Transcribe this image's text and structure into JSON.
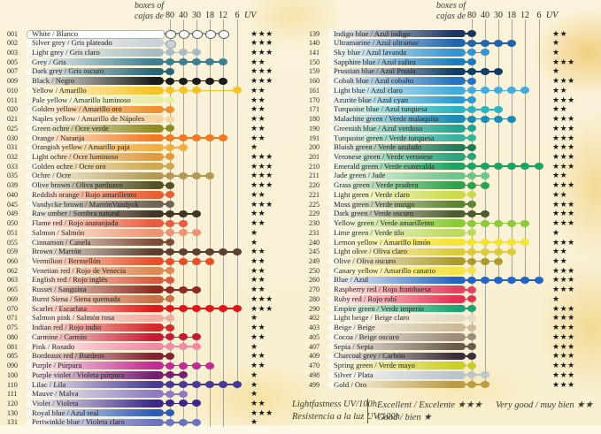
{
  "header": {
    "boxes_of": "boxes of",
    "cajas_de": "cajas de",
    "box_sizes": [
      "80",
      "40",
      "30",
      "18",
      "12",
      "6"
    ],
    "uv": "UV"
  },
  "legend": {
    "lightfastness_en": "Lightfastness UV/100h",
    "lightfastness_es": "Resistencia a la luz UV/100h",
    "excellent": "Excellent / Excelente ★★★",
    "good": "Good / bien ★",
    "very_good": "Very good / muy bien ★★"
  },
  "star_char": "★",
  "left_rows": [
    {
      "code": "001",
      "name": "White / Blanco",
      "color": "#ffffff",
      "dots": [
        "80",
        "40",
        "30",
        "18",
        "12"
      ],
      "stars": 3,
      "dot_border": "#555555",
      "line": "#999990"
    },
    {
      "code": "002",
      "name": "Silver grey / Gris plateado",
      "color": "#c9d2d6",
      "dots": [
        "80"
      ],
      "stars": 3,
      "dot_border": "#8a9aa2"
    },
    {
      "code": "003",
      "name": "Light grey / Gris claro",
      "color": "#a9bcc3",
      "dots": [
        "80",
        "40",
        "30"
      ],
      "stars": 3
    },
    {
      "code": "005",
      "name": "Grey / Gris",
      "color": "#3e7e92",
      "dots": [
        "80",
        "40",
        "30",
        "18",
        "12"
      ],
      "stars": 2
    },
    {
      "code": "007",
      "name": "Dark grey / Gris oscuro",
      "color": "#2a6577",
      "dots": [
        "80"
      ],
      "stars": 3
    },
    {
      "code": "009",
      "name": "Black / Negro",
      "color": "#1c1c1c",
      "dots": [
        "80",
        "40",
        "30",
        "18",
        "12"
      ],
      "stars": 3
    },
    {
      "code": "010",
      "name": "Yellow / Amarillo",
      "color": "#f6c326",
      "dots": [
        "80",
        "40",
        "30",
        "6"
      ],
      "stars": 2
    },
    {
      "code": "011",
      "name": "Pale yellow / Amarillo luminoso",
      "color": "#e7eda2",
      "dots": [
        "80"
      ],
      "stars": 2
    },
    {
      "code": "020",
      "name": "Golden yellow / Amarillo oro",
      "color": "#ef9130",
      "dots": [
        "80"
      ],
      "stars": 2
    },
    {
      "code": "021",
      "name": "Naples yellow / Amarillo de Nápoles",
      "color": "#f6d3a0",
      "dots": [
        "80"
      ],
      "stars": 2
    },
    {
      "code": "025",
      "name": "Green ochre / Ocre verde",
      "color": "#8f8d22",
      "dots": [
        "80"
      ],
      "stars": 2
    },
    {
      "code": "030",
      "name": "Orange / Naranja",
      "color": "#f2791f",
      "dots": [
        "80",
        "40",
        "30",
        "18",
        "12"
      ],
      "stars": 2
    },
    {
      "code": "031",
      "name": "Orangish yellow / Amarillo paja",
      "color": "#f6ad3f",
      "dots": [
        "80",
        "40"
      ],
      "stars": 1
    },
    {
      "code": "032",
      "name": "Light ochre / Ocre luminoso",
      "color": "#e29b3d",
      "dots": [
        "80"
      ],
      "stars": 3
    },
    {
      "code": "033",
      "name": "Golden ochre / Ocre oro",
      "color": "#cda84d",
      "dots": [
        "80"
      ],
      "stars": 3
    },
    {
      "code": "035",
      "name": "Ochre / Ocre",
      "color": "#b29a54",
      "dots": [
        "80",
        "40",
        "30",
        "18"
      ],
      "stars": 3
    },
    {
      "code": "039",
      "name": "Olive brown / Oliva parduzco",
      "color": "#565426",
      "dots": [
        "80"
      ],
      "stars": 3
    },
    {
      "code": "040",
      "name": "Reddish orange / Rojo amarillento",
      "color": "#e95f35",
      "dots": [
        "80"
      ],
      "stars": 2
    },
    {
      "code": "045",
      "name": "Vandycke brown / MarrónVandyck",
      "color": "#6e655a",
      "dots": [
        "80"
      ],
      "stars": 3
    },
    {
      "code": "049",
      "name": "Raw umber / Sombra natural",
      "color": "#413528",
      "dots": [
        "80",
        "40",
        "30"
      ],
      "stars": 2
    },
    {
      "code": "050",
      "name": "Flame red / Rojo anaranjada",
      "color": "#e95b40",
      "dots": [
        "80",
        "40"
      ],
      "stars": 2
    },
    {
      "code": "051",
      "name": "Salmon / Salmón",
      "color": "#f19272",
      "dots": [
        "80",
        "40",
        "30"
      ],
      "stars": 1
    },
    {
      "code": "055",
      "name": "Cinnamon / Canela",
      "color": "#7d4b39",
      "dots": [
        "80"
      ],
      "stars": 1
    },
    {
      "code": "059",
      "name": "Brown / Marrón",
      "color": "#5d3f32",
      "dots": [
        "80",
        "40",
        "30",
        "18",
        "12",
        "6"
      ],
      "stars": 2
    },
    {
      "code": "060",
      "name": "Vermilion / Bermellón",
      "color": "#e94e27",
      "dots": [
        "80",
        "40",
        "30",
        "18"
      ],
      "stars": 2
    },
    {
      "code": "062",
      "name": "Venetian red / Rojo de Venecia",
      "color": "#de8a58",
      "dots": [
        "80"
      ],
      "stars": 2
    },
    {
      "code": "063",
      "name": "English red / Rojo inglés",
      "color": "#d95c41",
      "dots": [
        "80"
      ],
      "stars": 2
    },
    {
      "code": "065",
      "name": "Russet / Sanguina",
      "color": "#8e2a22",
      "dots": [
        "80",
        "40",
        "30"
      ],
      "stars": 2
    },
    {
      "code": "069",
      "name": "Burnt Siena / Siena quemada",
      "color": "#c97048",
      "dots": [
        "80"
      ],
      "stars": 3
    },
    {
      "code": "070",
      "name": "Scarlet / Escarlata",
      "color": "#e11818",
      "dots": [
        "80",
        "40",
        "30",
        "18",
        "12",
        "6"
      ],
      "stars": 3
    },
    {
      "code": "071",
      "name": "Salmon pink / Salmón rosa",
      "color": "#f3aba3",
      "dots": [
        "80"
      ],
      "stars": 1
    },
    {
      "code": "075",
      "name": "Indian red / Rojo indio",
      "color": "#d32a2a",
      "dots": [
        "80"
      ],
      "stars": 2
    },
    {
      "code": "080",
      "name": "Carmine / Carmín",
      "color": "#c71b34",
      "dots": [
        "80",
        "40",
        "30"
      ],
      "stars": 2
    },
    {
      "code": "081",
      "name": "Pink / Rosado",
      "color": "#f08aa3",
      "dots": [
        "80",
        "40",
        "30"
      ],
      "stars": 1
    },
    {
      "code": "085",
      "name": "Bordeaux red / Burdeos",
      "color": "#83212d",
      "dots": [
        "80"
      ],
      "stars": 2
    },
    {
      "code": "090",
      "name": "Purple / Púrpura",
      "color": "#c32b92",
      "dots": [
        "80",
        "40",
        "30",
        "18"
      ],
      "stars": 2
    },
    {
      "code": "100",
      "name": "Purple violet / Violeta púrpura",
      "color": "#75216e",
      "dots": [
        "80",
        "40"
      ],
      "stars": 1
    },
    {
      "code": "110",
      "name": "Lilac / Lila",
      "color": "#4a3a95",
      "dots": [
        "80",
        "40",
        "30",
        "18",
        "12",
        "6"
      ],
      "stars": 1
    },
    {
      "code": "111",
      "name": "Mauve / Malva",
      "color": "#8d7cc4",
      "dots": [
        "80",
        "40"
      ],
      "stars": 1
    },
    {
      "code": "120",
      "name": "Violet / Violeta",
      "color": "#3b2a84",
      "dots": [
        "80",
        "40",
        "30"
      ],
      "stars": 2
    },
    {
      "code": "130",
      "name": "Royal blue / Azul real",
      "color": "#2c5cb4",
      "dots": [
        "80"
      ],
      "stars": 3
    },
    {
      "code": "131",
      "name": "Periwinkle blue / Violeta claro",
      "color": "#6b74bc",
      "dots": [
        "80",
        "40",
        "30"
      ],
      "stars": 1
    }
  ],
  "right_rows": [
    {
      "code": "139",
      "name": "Indigo blue / Azul índigo",
      "color": "#1b3560",
      "dots": [
        "80"
      ],
      "stars": 2
    },
    {
      "code": "140",
      "name": "Ultramarine / Azul ultramar",
      "color": "#2264ac",
      "dots": [
        "80",
        "40",
        "30",
        "18"
      ],
      "stars": 1
    },
    {
      "code": "141",
      "name": "Sky blue / Azul lavanda",
      "color": "#3493d3",
      "dots": [
        "80",
        "40"
      ],
      "stars": 1
    },
    {
      "code": "150",
      "name": "Sapphire blue / Azul zafiro",
      "color": "#1a7cbc",
      "dots": [
        "80"
      ],
      "stars": 3
    },
    {
      "code": "159",
      "name": "Prussian blue / Azul Prusia",
      "color": "#123d66",
      "dots": [
        "80",
        "40",
        "30"
      ],
      "stars": 1
    },
    {
      "code": "160",
      "name": "Cobalt blue / Azul cobalto",
      "color": "#2273c3",
      "dots": [
        "80"
      ],
      "stars": 3
    },
    {
      "code": "161",
      "name": "Light blue / Azul claro",
      "color": "#43abdb",
      "dots": [
        "80",
        "40",
        "30",
        "18",
        "12"
      ],
      "stars": 2
    },
    {
      "code": "170",
      "name": "Azurite blue / Azul cyan",
      "color": "#2c9bd3",
      "dots": [
        "80"
      ],
      "stars": 3
    },
    {
      "code": "171",
      "name": "Turquoise blue / Azul turquesa",
      "color": "#2cb3c3",
      "dots": [
        "80",
        "40",
        "30"
      ],
      "stars": 2
    },
    {
      "code": "180",
      "name": "Malachite green / Verde malaquita",
      "color": "#1c8bb3",
      "dots": [
        "80",
        "40",
        "30",
        "18"
      ],
      "stars": 3
    },
    {
      "code": "190",
      "name": "Greenish blue / Azul verdoso",
      "color": "#24a393",
      "dots": [
        "80"
      ],
      "stars": 3
    },
    {
      "code": "191",
      "name": "Turquoise green / Verde turquesa",
      "color": "#34b3a3",
      "dots": [
        "80"
      ],
      "stars": 3
    },
    {
      "code": "200",
      "name": "Bluish green / Verde azulado",
      "color": "#247b5b",
      "dots": [
        "80"
      ],
      "stars": 3
    },
    {
      "code": "201",
      "name": "Veronese green / Verde veronese",
      "color": "#2ca37b",
      "dots": [
        "80"
      ],
      "stars": 3
    },
    {
      "code": "210",
      "name": "Emerald green / Verde esmeralda",
      "color": "#1ca363",
      "dots": [
        "80",
        "40",
        "30",
        "18",
        "12",
        "6"
      ],
      "stars": 3
    },
    {
      "code": "211",
      "name": "Jade green / Jade",
      "color": "#6cc38b",
      "dots": [
        "80",
        "40"
      ],
      "stars": 2
    },
    {
      "code": "220",
      "name": "Grass green / Verde pradera",
      "color": "#2ca34b",
      "dots": [
        "80",
        "40"
      ],
      "stars": 3
    },
    {
      "code": "221",
      "name": "Light green / Verde claro",
      "color": "#cbdb4b",
      "dots": [
        "80"
      ],
      "stars": 2
    },
    {
      "code": "225",
      "name": "Moss green / Verde musgo",
      "color": "#5b8333",
      "dots": [
        "80"
      ],
      "stars": 3
    },
    {
      "code": "229",
      "name": "Dark green / Verde oscuro",
      "color": "#4b5b33",
      "dots": [
        "80",
        "40"
      ],
      "stars": 3
    },
    {
      "code": "230",
      "name": "Yellow green / Verde amarillento",
      "color": "#8bcb3b",
      "dots": [
        "80",
        "40",
        "30",
        "18",
        "12"
      ],
      "stars": 3
    },
    {
      "code": "231",
      "name": "Lime green / Verde tilo",
      "color": "#bbdb5b",
      "dots": [
        "80"
      ],
      "stars": 1
    },
    {
      "code": "240",
      "name": "Lemon yellow / Amarillo limón",
      "color": "#f3e333",
      "dots": [
        "80",
        "40",
        "30",
        "18",
        "12"
      ],
      "stars": 3
    },
    {
      "code": "245",
      "name": "Light olive / Oliva claro",
      "color": "#dbcb3b",
      "dots": [
        "80",
        "40",
        "30",
        "18"
      ],
      "stars": 2
    },
    {
      "code": "249",
      "name": "Olive / Oliva oscuro",
      "color": "#ab9b2b",
      "dots": [
        "80",
        "40",
        "30"
      ],
      "stars": 2
    },
    {
      "code": "250",
      "name": "Canary yellow / Amarillo canario",
      "color": "#f3e343",
      "dots": [
        "80"
      ],
      "stars": 3
    },
    {
      "code": "260",
      "name": "Blue / Azul",
      "color": "#2363c3",
      "dots": [
        "80",
        "40",
        "30",
        "18",
        "12",
        "6"
      ],
      "stars": 3
    },
    {
      "code": "270",
      "name": "Raspberry red / Rojo frambuesa",
      "color": "#e34363",
      "dots": [
        "80"
      ],
      "stars": 3
    },
    {
      "code": "280",
      "name": "Ruby red / Rojo rubí",
      "color": "#e33353",
      "dots": [
        "80"
      ],
      "stars": 1
    },
    {
      "code": "290",
      "name": "Empire green / Verde imperio",
      "color": "#1ca373",
      "dots": [
        "80"
      ],
      "stars": 3
    },
    {
      "code": "402",
      "name": "Light beige / Beige claro",
      "color": "#e3dbc3",
      "dots": [
        "80"
      ],
      "stars": 3
    },
    {
      "code": "403",
      "name": "Beige / Beige",
      "color": "#cbbb9b",
      "dots": [
        "80"
      ],
      "stars": 3
    },
    {
      "code": "405",
      "name": "Cocoa / Beige oscuro",
      "color": "#9b8b7b",
      "dots": [
        "80"
      ],
      "stars": 3
    },
    {
      "code": "407",
      "name": "Sepia / Sepia",
      "color": "#6b5b4b",
      "dots": [
        "80"
      ],
      "stars": 3
    },
    {
      "code": "409",
      "name": "Charcoal grey / Carbón",
      "color": "#3a2e3a",
      "dots": [
        "80"
      ],
      "stars": 3
    },
    {
      "code": "470",
      "name": "Spring green / Verde mayo",
      "color": "#cbcf23",
      "dots": [
        "80"
      ],
      "stars": 3
    },
    {
      "code": "498",
      "name": "Silver / Plata",
      "color": "#bbc3cb",
      "dots": [
        "80",
        "40"
      ],
      "stars": 3
    },
    {
      "code": "499",
      "name": "Gold / Oro",
      "color": "#bb9b43",
      "dots": [
        "80",
        "40"
      ],
      "stars": 3
    }
  ]
}
